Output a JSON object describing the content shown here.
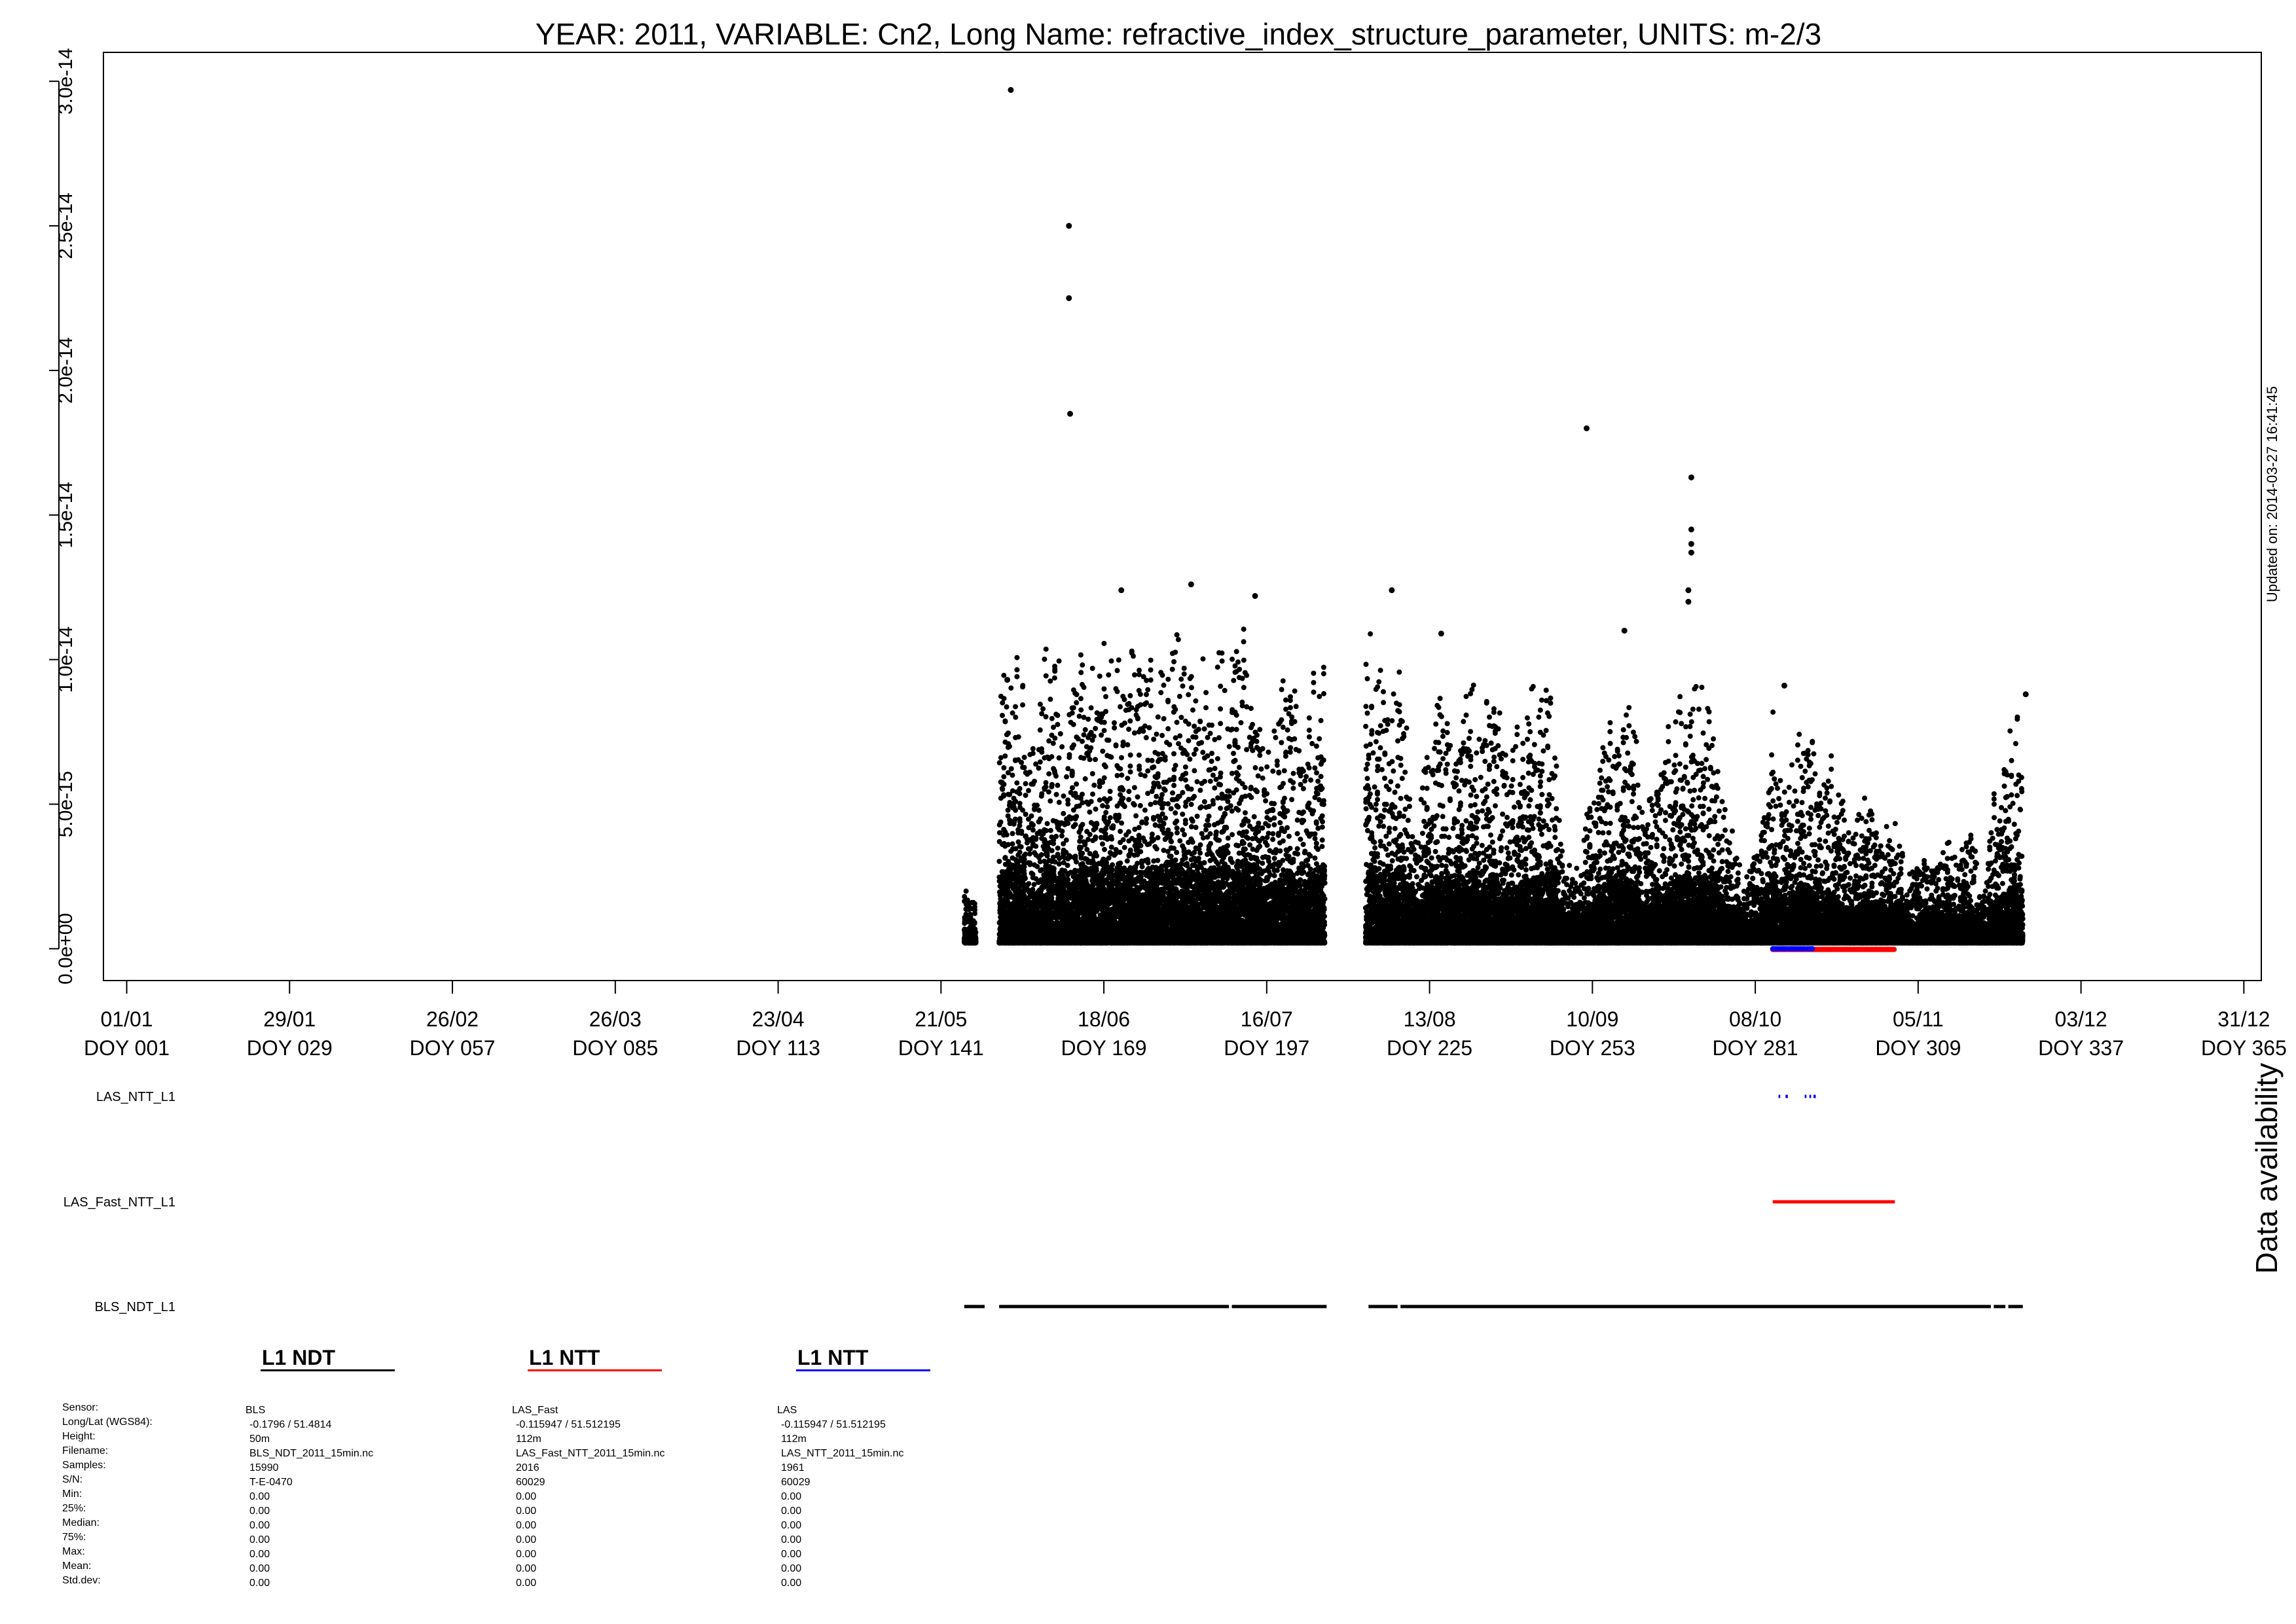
{
  "chart_data": {
    "type": "scatter",
    "title": "YEAR: 2011, VARIABLE: Cn2, Long Name: refractive_index_structure_parameter, UNITS: m-2/3",
    "updated_text": "Updated on: 2014-03-27 16:41:45",
    "xlim": [
      -3,
      368
    ],
    "ylim": [
      -1.1e-15,
      3.1e-14
    ],
    "y_ticks": [
      0,
      5e-15,
      1e-14,
      1.5e-14,
      2e-14,
      2.5e-14,
      3e-14
    ],
    "y_tick_labels": [
      "0.0e+00",
      "5.0e-15",
      "1.0e-14",
      "1.5e-14",
      "2.0e-14",
      "2.5e-14",
      "3.0e-14"
    ],
    "x_ticks": [
      {
        "doy": 1,
        "date": "01/01",
        "label": "DOY 001"
      },
      {
        "doy": 29,
        "date": "29/01",
        "label": "DOY 029"
      },
      {
        "doy": 57,
        "date": "26/02",
        "label": "DOY 057"
      },
      {
        "doy": 85,
        "date": "26/03",
        "label": "DOY 085"
      },
      {
        "doy": 113,
        "date": "23/04",
        "label": "DOY 113"
      },
      {
        "doy": 141,
        "date": "21/05",
        "label": "DOY 141"
      },
      {
        "doy": 169,
        "date": "18/06",
        "label": "DOY 169"
      },
      {
        "doy": 197,
        "date": "16/07",
        "label": "DOY 197"
      },
      {
        "doy": 225,
        "date": "13/08",
        "label": "DOY 225"
      },
      {
        "doy": 253,
        "date": "10/09",
        "label": "DOY 253"
      },
      {
        "doy": 281,
        "date": "08/10",
        "label": "DOY 281"
      },
      {
        "doy": 309,
        "date": "05/11",
        "label": "DOY 309"
      },
      {
        "doy": 337,
        "date": "03/12",
        "label": "DOY 337"
      },
      {
        "doy": 365,
        "date": "31/12",
        "label": "DOY 365"
      }
    ],
    "series": [
      {
        "name": "L1 NDT",
        "color": "#000000",
        "envelope": [
          [
            145,
            2e-15
          ],
          [
            147,
            1.5e-15
          ],
          [
            151,
            8.5e-15
          ],
          [
            152,
            1e-14
          ],
          [
            153,
            1.1e-14
          ],
          [
            155,
            1e-14
          ],
          [
            157,
            6.5e-15
          ],
          [
            159,
            1.05e-14
          ],
          [
            161,
            1.1e-14
          ],
          [
            163,
            8e-15
          ],
          [
            165,
            1.1e-14
          ],
          [
            167,
            1e-14
          ],
          [
            169,
            1.2e-14
          ],
          [
            171,
            1.05e-14
          ],
          [
            173,
            1e-14
          ],
          [
            175,
            1.1e-14
          ],
          [
            177,
            1.05e-14
          ],
          [
            179,
            1.1e-14
          ],
          [
            181,
            1.15e-14
          ],
          [
            183,
            1e-14
          ],
          [
            185,
            9.5e-15
          ],
          [
            187,
            1.05e-14
          ],
          [
            189,
            1.1e-14
          ],
          [
            191,
            1e-14
          ],
          [
            193,
            1.15e-14
          ],
          [
            195,
            1.05e-14
          ],
          [
            197,
            7e-15
          ],
          [
            199,
            9e-15
          ],
          [
            201,
            1e-14
          ],
          [
            203,
            7.5e-15
          ],
          [
            205,
            1e-14
          ],
          [
            207,
            1.1e-14
          ],
          [
            214,
            1.15e-14
          ],
          [
            216,
            1.05e-14
          ],
          [
            218,
            8e-15
          ],
          [
            220,
            1.1e-14
          ],
          [
            222,
            4.5e-15
          ],
          [
            224,
            6e-15
          ],
          [
            226,
            9.5e-15
          ],
          [
            228,
            8e-15
          ],
          [
            230,
            9e-15
          ],
          [
            232,
            1e-14
          ],
          [
            234,
            8e-15
          ],
          [
            236,
            9.5e-15
          ],
          [
            238,
            7.5e-15
          ],
          [
            240,
            8e-15
          ],
          [
            242,
            9e-15
          ],
          [
            244,
            9.5e-15
          ],
          [
            246,
            9e-15
          ],
          [
            248,
            3e-15
          ],
          [
            250,
            2.5e-15
          ],
          [
            252,
            4.5e-15
          ],
          [
            254,
            6.5e-15
          ],
          [
            256,
            8e-15
          ],
          [
            258,
            1.05e-14
          ],
          [
            260,
            8.5e-15
          ],
          [
            262,
            4.5e-15
          ],
          [
            264,
            6e-15
          ],
          [
            266,
            8e-15
          ],
          [
            268,
            9.5e-15
          ],
          [
            270,
            9e-15
          ],
          [
            272,
            9.5e-15
          ],
          [
            274,
            7.5e-15
          ],
          [
            276,
            5e-15
          ],
          [
            278,
            3e-15
          ],
          [
            280,
            2.5e-15
          ],
          [
            282,
            4e-15
          ],
          [
            284,
            8.5e-15
          ],
          [
            286,
            6e-15
          ],
          [
            288,
            7.5e-15
          ],
          [
            290,
            8e-15
          ],
          [
            292,
            6e-15
          ],
          [
            294,
            7e-15
          ],
          [
            296,
            5.5e-15
          ],
          [
            298,
            4e-15
          ],
          [
            300,
            5.5e-15
          ],
          [
            302,
            4e-15
          ],
          [
            304,
            5e-15
          ],
          [
            306,
            3.5e-15
          ],
          [
            308,
            2.5e-15
          ],
          [
            310,
            3e-15
          ],
          [
            312,
            3.5e-15
          ],
          [
            314,
            4e-15
          ],
          [
            316,
            3e-15
          ],
          [
            318,
            4.5e-15
          ],
          [
            320,
            1.5e-15
          ],
          [
            322,
            5.5e-15
          ],
          [
            324,
            7e-15
          ],
          [
            326,
            8.5e-15
          ],
          [
            327,
            6e-15
          ]
        ],
        "outliers": [
          [
            153.0,
            2.97e-14
          ],
          [
            163.0,
            2.5e-14
          ],
          [
            163.0,
            2.25e-14
          ],
          [
            163.2,
            1.85e-14
          ],
          [
            152.4,
            9.3e-15
          ],
          [
            172.0,
            1.24e-14
          ],
          [
            184.0,
            1.26e-14
          ],
          [
            195.0,
            1.22e-14
          ],
          [
            218.5,
            1.24e-14
          ],
          [
            252.0,
            1.8e-14
          ],
          [
            270.0,
            1.63e-14
          ],
          [
            270.0,
            1.45e-14
          ],
          [
            270.0,
            1.4e-14
          ],
          [
            270.0,
            1.37e-14
          ],
          [
            269.5,
            1.24e-14
          ],
          [
            269.5,
            1.2e-14
          ],
          [
            286.0,
            9.1e-15
          ],
          [
            327.5,
            8.8e-15
          ],
          [
            227.0,
            1.09e-14
          ],
          [
            258.5,
            1.1e-14
          ]
        ]
      },
      {
        "name": "L1 NTT",
        "color": "#ff0000",
        "x_range": [
          284,
          305
        ],
        "y": 0
      },
      {
        "name": "L1 NTT",
        "color": "#0000ff",
        "x_range": [
          284,
          291
        ],
        "y": 0
      }
    ]
  },
  "availability": {
    "label": "Data availability",
    "rows": [
      {
        "name": "LAS_NTT_L1",
        "color": "#0000ff",
        "segments": [
          [
            285.0,
            285.3
          ],
          [
            286.2,
            286.6
          ],
          [
            289.5,
            289.8
          ],
          [
            290.3,
            290.6
          ],
          [
            291.0,
            291.4
          ]
        ]
      },
      {
        "name": "LAS_Fast_NTT_L1",
        "color": "#ff0000",
        "segments": [
          [
            284.0,
            305.0
          ]
        ]
      },
      {
        "name": "BLS_NDT_L1",
        "color": "#000000",
        "segments": [
          [
            145.0,
            148.5
          ],
          [
            151.0,
            190.5
          ],
          [
            191.0,
            207.3
          ],
          [
            214.5,
            219.5
          ],
          [
            220.0,
            321.5
          ],
          [
            322.0,
            324.0
          ],
          [
            324.5,
            327.0
          ]
        ]
      }
    ]
  },
  "sensors": [
    {
      "title": "L1 NDT",
      "color": "#000000",
      "values": [
        "BLS",
        "-0.1796 / 51.4814",
        "50m",
        "BLS_NDT_2011_15min.nc",
        "15990",
        "T-E-0470",
        "0.00",
        "0.00",
        "0.00",
        "0.00",
        "0.00",
        "0.00",
        "0.00"
      ]
    },
    {
      "title": "L1 NTT",
      "color": "#ff0000",
      "values": [
        "LAS_Fast",
        "-0.115947 / 51.512195",
        "112m",
        "LAS_Fast_NTT_2011_15min.nc",
        "2016",
        "60029",
        "0.00",
        "0.00",
        "0.00",
        "0.00",
        "0.00",
        "0.00",
        "0.00"
      ]
    },
    {
      "title": "L1 NTT",
      "color": "#0000ff",
      "values": [
        "LAS",
        "-0.115947 / 51.512195",
        "112m",
        "LAS_NTT_2011_15min.nc",
        "1961",
        "60029",
        "0.00",
        "0.00",
        "0.00",
        "0.00",
        "0.00",
        "0.00",
        "0.00"
      ]
    }
  ],
  "stats_labels": [
    "Sensor:",
    "Long/Lat (WGS84):",
    "Height:",
    "Filename:",
    "Samples:",
    "S/N:",
    "Min:",
    "25%:",
    "Median:",
    "75%:",
    "Max:",
    "Mean:",
    "Std.dev:"
  ]
}
